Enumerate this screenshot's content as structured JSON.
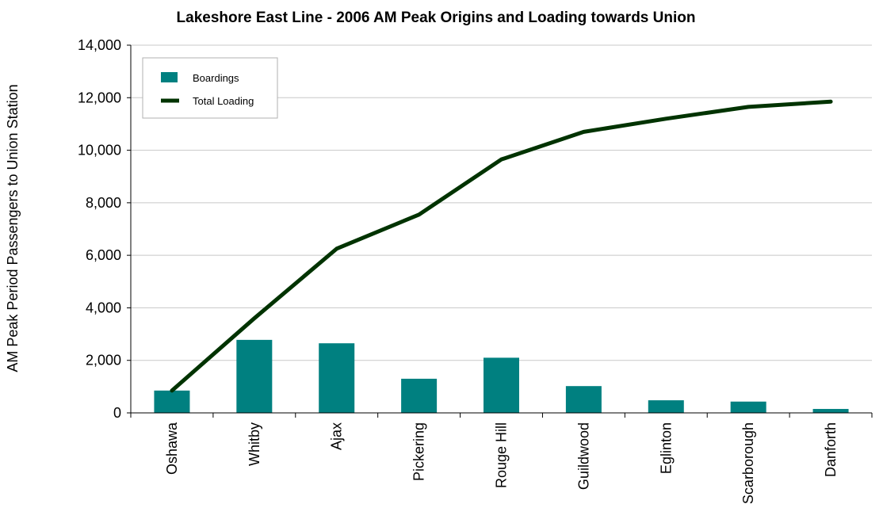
{
  "chart_data": {
    "type": "bar+line",
    "title": "Lakeshore East Line - 2006 AM Peak Origins and Loading towards Union",
    "ylabel": "AM Peak Period Passengers to Union Station",
    "xlabel": "",
    "ylim": [
      0,
      14000
    ],
    "yticks": [
      0,
      2000,
      4000,
      6000,
      8000,
      10000,
      12000,
      14000
    ],
    "ytick_labels": [
      "0",
      "2,000",
      "4,000",
      "6,000",
      "8,000",
      "10,000",
      "12,000",
      "14,000"
    ],
    "categories": [
      "Oshawa",
      "Whitby",
      "Ajax",
      "Pickering",
      "Rouge Hill",
      "Guildwood",
      "Eglinton",
      "Scarborough",
      "Danforth"
    ],
    "series": [
      {
        "name": "Boardings",
        "type": "bar",
        "color": "#008080",
        "values": [
          850,
          2780,
          2650,
          1300,
          2100,
          1020,
          480,
          430,
          150
        ]
      },
      {
        "name": "Total Loading",
        "type": "line",
        "color": "#003300",
        "values": [
          850,
          3600,
          6250,
          7550,
          9650,
          10700,
          11200,
          11650,
          11850
        ]
      }
    ],
    "grid": true,
    "legend_position": "top-left"
  }
}
